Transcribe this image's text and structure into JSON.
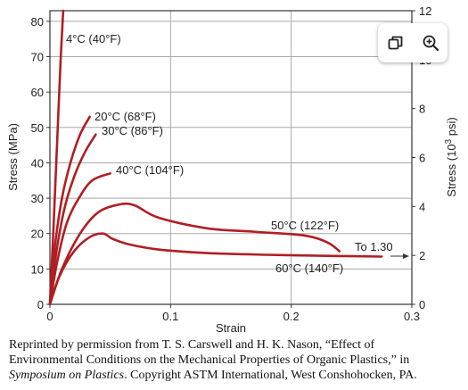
{
  "chart_data": {
    "type": "line",
    "xlabel": "Strain",
    "ylabel": "Stress (MPa)",
    "y2label_prefix": "Stress (10",
    "y2label_exp": "3",
    "y2label_suffix": " psi)",
    "xlim": [
      0,
      0.3
    ],
    "ylim": [
      0,
      83
    ],
    "y2lim": [
      0,
      12
    ],
    "x_ticks": [
      0,
      0.1,
      0.2,
      0.3
    ],
    "x_tick_labels": [
      "0",
      "0.1",
      "0.2",
      "0.3"
    ],
    "y_ticks": [
      0,
      10,
      20,
      30,
      40,
      50,
      60,
      70,
      80
    ],
    "y_tick_labels": [
      "0",
      "10",
      "20",
      "30",
      "40",
      "50",
      "60",
      "70",
      "80"
    ],
    "y2_ticks": [
      0,
      2,
      4,
      6,
      8,
      10,
      12
    ],
    "y2_tick_labels": [
      "0",
      "2",
      "4",
      "6",
      "8",
      "10",
      "12"
    ],
    "grid": true,
    "series": [
      {
        "name": "4°C (40°F)",
        "x": [
          0,
          0.003,
          0.006,
          0.009,
          0.011
        ],
        "y": [
          0,
          22,
          46,
          70,
          83
        ]
      },
      {
        "name": "20°C (68°F)",
        "x": [
          0,
          0.004,
          0.01,
          0.017,
          0.025,
          0.033
        ],
        "y": [
          0,
          16,
          30,
          40,
          48,
          53
        ]
      },
      {
        "name": "30°C (86°F)",
        "x": [
          0,
          0.005,
          0.012,
          0.02,
          0.029,
          0.038
        ],
        "y": [
          0,
          14,
          27,
          36,
          43,
          48
        ]
      },
      {
        "name": "40°C (104°F)",
        "x": [
          0,
          0.006,
          0.014,
          0.024,
          0.035,
          0.05
        ],
        "y": [
          0,
          12,
          23,
          30,
          35,
          37
        ]
      },
      {
        "name": "50°C (122°F)",
        "x": [
          0,
          0.01,
          0.025,
          0.04,
          0.057,
          0.07,
          0.09,
          0.13,
          0.17,
          0.21,
          0.23,
          0.24
        ],
        "y": [
          0,
          10,
          20,
          26,
          28.2,
          28,
          24.5,
          21.5,
          20.5,
          19.5,
          17.5,
          15
        ]
      },
      {
        "name": "60°C (140°F)",
        "x": [
          0,
          0.008,
          0.02,
          0.033,
          0.044,
          0.052,
          0.065,
          0.09,
          0.13,
          0.18,
          0.23,
          0.275
        ],
        "y": [
          0,
          8,
          15,
          19,
          20,
          18.5,
          17,
          15.5,
          14.5,
          14,
          13.7,
          13.5
        ]
      }
    ],
    "annotations": [
      {
        "text": "To 1.30",
        "arrow": true
      }
    ]
  },
  "caption": {
    "line1": "Reprinted by permission from T. S. Carswell and H. K. Nason, “Effect of",
    "line2": "Environmental Conditions on the Mechanical Properties of Organic Plastics,” in",
    "line3_italic": "Symposium on Plastics",
    "line3_rest": ". Copyright ASTM International, West Conshohocken, PA."
  },
  "toolbar": {
    "icons": [
      "copy-icon",
      "zoom-in-icon"
    ]
  }
}
